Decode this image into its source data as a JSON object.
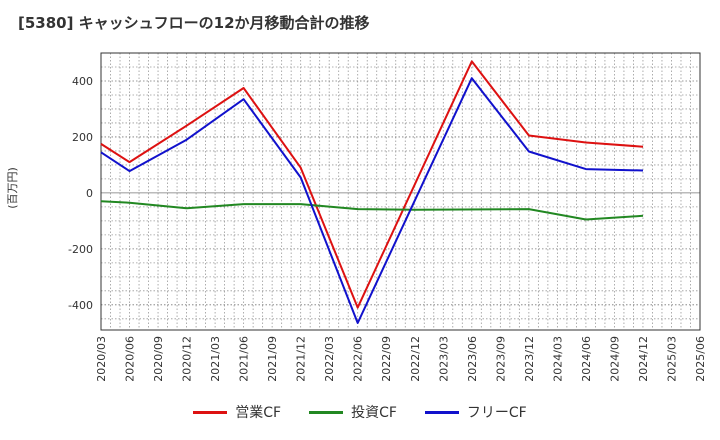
{
  "chart_data": {
    "type": "line",
    "title": "[5380]  キャッシュフローの12か月移動合計の推移",
    "ylabel": "(百万円)",
    "xlabel": "",
    "ylim": [
      -490,
      500
    ],
    "yticks": [
      -400,
      -200,
      0,
      200,
      400
    ],
    "ytick_labels": [
      "-400",
      "-200",
      "0",
      "200",
      "400"
    ],
    "categories": [
      "2020/03",
      "2020/06",
      "2020/09",
      "2020/12",
      "2021/03",
      "2021/06",
      "2021/09",
      "2021/12",
      "2022/03",
      "2022/06",
      "2022/09",
      "2022/12",
      "2023/03",
      "2023/06",
      "2023/09",
      "2023/12",
      "2024/03",
      "2024/06",
      "2024/09",
      "2024/12",
      "2025/03",
      "2025/06"
    ],
    "grid": true,
    "legend_position": "bottom",
    "series": [
      {
        "name": "営業CF",
        "color": "#dd1111",
        "values": [
          175,
          110,
          null,
          240,
          null,
          375,
          null,
          90,
          null,
          -410,
          null,
          null,
          null,
          470,
          null,
          205,
          null,
          180,
          null,
          165,
          null,
          null
        ]
      },
      {
        "name": "投資CF",
        "color": "#228822",
        "values": [
          -30,
          -35,
          null,
          -55,
          null,
          -40,
          null,
          -40,
          null,
          -58,
          null,
          -60,
          null,
          null,
          null,
          -58,
          null,
          -95,
          null,
          -82,
          null,
          null
        ]
      },
      {
        "name": "フリーCF",
        "color": "#1111cc",
        "values": [
          145,
          78,
          null,
          190,
          null,
          335,
          null,
          55,
          null,
          -465,
          null,
          null,
          null,
          410,
          null,
          148,
          null,
          85,
          null,
          80,
          null,
          null
        ]
      }
    ]
  }
}
